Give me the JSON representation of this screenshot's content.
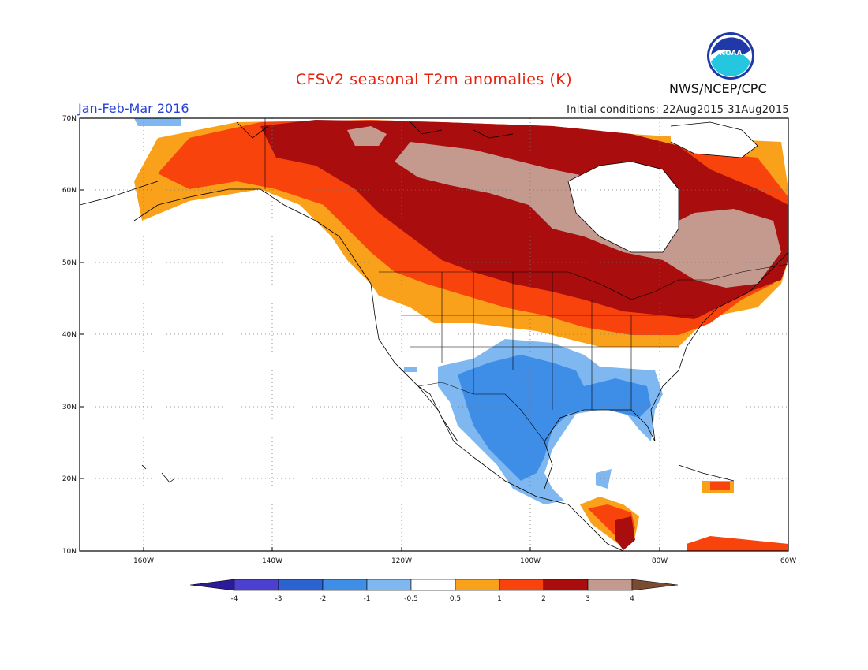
{
  "title": "CFSv2 seasonal T2m anomalies (K)",
  "period": "Jan-Feb-Mar 2016",
  "initial_conditions": "Initial conditions: 22Aug2015-31Aug2015",
  "agency": "NWS/NCEP/CPC",
  "logo_text": "NOAA",
  "map": {
    "lat_labels": [
      "70N",
      "60N",
      "50N",
      "40N",
      "30N",
      "20N",
      "10N"
    ],
    "lon_labels": [
      "160W",
      "140W",
      "120W",
      "100W",
      "80W",
      "60W"
    ],
    "grid": "dotted"
  },
  "colorbar": {
    "ticks": [
      "-4",
      "-3",
      "-2",
      "-1",
      "-0.5",
      "0.5",
      "1",
      "2",
      "3",
      "4"
    ],
    "colors": [
      "#2a1b9a",
      "#4d3fd0",
      "#2b63d1",
      "#3e8ee8",
      "#7fb8f0",
      "#ffffff",
      "#f9a11b",
      "#f8430d",
      "#a90d0d",
      "#c49a8f",
      "#7a4b33"
    ]
  }
}
